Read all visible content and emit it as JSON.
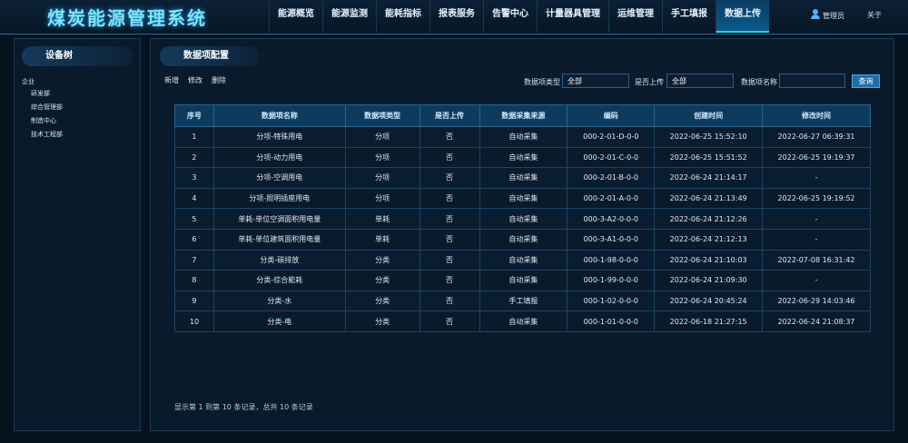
{
  "header": {
    "title": "煤炭能源管理系统",
    "nav": [
      "能源概览",
      "能源监测",
      "能耗指标",
      "报表服务",
      "告警中心",
      "计量器具管理",
      "运维管理",
      "手工填报",
      "数据上传"
    ],
    "user": "管理员",
    "about": "关于"
  },
  "sidebar": {
    "title": "设备树",
    "root": "企业",
    "children": [
      "研发部",
      "综合管理部",
      "制造中心",
      "技术工程部"
    ]
  },
  "panel": {
    "title": "数据项配置",
    "toolbar": [
      "新增",
      "修改",
      "删除"
    ],
    "filters": {
      "type_label": "数据项类型",
      "type_value": "全部",
      "upload_label": "是否上传",
      "upload_value": "全部",
      "name_label": "数据项名称",
      "search": "查询"
    },
    "table": {
      "headers": [
        "序号",
        "数据项名称",
        "数据项类型",
        "是否上传",
        "数据采集来源",
        "编码",
        "创建时间",
        "修改时间"
      ],
      "rows": [
        [
          "1",
          "分项-特殊用电",
          "分项",
          "否",
          "自动采集",
          "000-2-01-D-0-0",
          "2022-06-25 15:52:10",
          "2022-06-27 06:39:31"
        ],
        [
          "2",
          "分项-动力用电",
          "分项",
          "否",
          "自动采集",
          "000-2-01-C-0-0",
          "2022-06-25 15:51:52",
          "2022-06-25 19:19:37"
        ],
        [
          "3",
          "分项-空调用电",
          "分项",
          "否",
          "自动采集",
          "000-2-01-B-0-0",
          "2022-06-24 21:14:17",
          "-"
        ],
        [
          "4",
          "分项-照明插座用电",
          "分项",
          "否",
          "自动采集",
          "000-2-01-A-0-0",
          "2022-06-24 21:13:49",
          "2022-06-25 19:19:52"
        ],
        [
          "5",
          "单耗-单位空调面积用电量",
          "单耗",
          "否",
          "自动采集",
          "000-3-A2-0-0-0",
          "2022-06-24 21:12:26",
          "-"
        ],
        [
          "6",
          "单耗-单位建筑面积用电量",
          "单耗",
          "否",
          "自动采集",
          "000-3-A1-0-0-0",
          "2022-06-24 21:12:13",
          "-"
        ],
        [
          "7",
          "分类-碳排放",
          "分类",
          "否",
          "自动采集",
          "000-1-98-0-0-0",
          "2022-06-24 21:10:03",
          "2022-07-08 16:31:42"
        ],
        [
          "8",
          "分类-综合能耗",
          "分类",
          "否",
          "自动采集",
          "000-1-99-0-0-0",
          "2022-06-24 21:09:30",
          "-"
        ],
        [
          "9",
          "分类-水",
          "分类",
          "否",
          "手工填报",
          "000-1-02-0-0-0",
          "2022-06-24 20:45:24",
          "2022-06-29 14:03:46"
        ],
        [
          "10",
          "分类-电",
          "分类",
          "否",
          "自动采集",
          "000-1-01-0-0-0",
          "2022-06-18 21:27:15",
          "2022-06-24 21:08:37"
        ]
      ]
    },
    "footer": "显示第 1 到第 10 条记录，总共 10 条记录"
  }
}
